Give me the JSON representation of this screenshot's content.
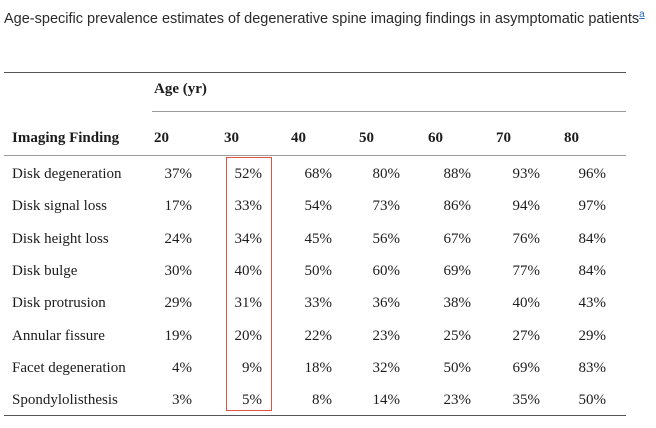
{
  "caption": {
    "text": "Age-specific prevalence estimates of degenerative spine imaging findings in asymptomatic patients",
    "footnote_marker": "a"
  },
  "table": {
    "group_header": "Age (yr)",
    "first_column_header": "Imaging Finding",
    "age_columns": [
      "20",
      "30",
      "40",
      "50",
      "60",
      "70",
      "80"
    ],
    "highlighted_column": "30",
    "highlight_color": "#e0553f",
    "rows": [
      {
        "finding": "Disk degeneration",
        "values": [
          "37%",
          "52%",
          "68%",
          "80%",
          "88%",
          "93%",
          "96%"
        ]
      },
      {
        "finding": "Disk signal loss",
        "values": [
          "17%",
          "33%",
          "54%",
          "73%",
          "86%",
          "94%",
          "97%"
        ]
      },
      {
        "finding": "Disk height loss",
        "values": [
          "24%",
          "34%",
          "45%",
          "56%",
          "67%",
          "76%",
          "84%"
        ]
      },
      {
        "finding": "Disk bulge",
        "values": [
          "30%",
          "40%",
          "50%",
          "60%",
          "69%",
          "77%",
          "84%"
        ]
      },
      {
        "finding": "Disk protrusion",
        "values": [
          "29%",
          "31%",
          "33%",
          "36%",
          "38%",
          "40%",
          "43%"
        ]
      },
      {
        "finding": "Annular fissure",
        "values": [
          "19%",
          "20%",
          "22%",
          "23%",
          "25%",
          "27%",
          "29%"
        ]
      },
      {
        "finding": "Facet degeneration",
        "values": [
          "4%",
          "9%",
          "18%",
          "32%",
          "50%",
          "69%",
          "83%"
        ]
      },
      {
        "finding": "Spondylolisthesis",
        "values": [
          "3%",
          "5%",
          "8%",
          "14%",
          "23%",
          "35%",
          "50%"
        ]
      }
    ]
  }
}
